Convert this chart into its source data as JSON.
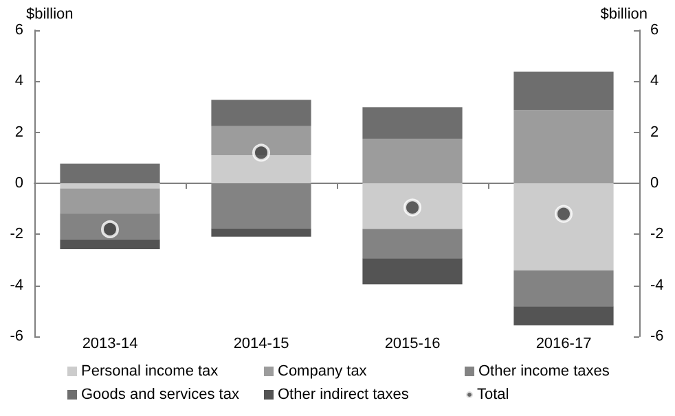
{
  "chart_data": {
    "type": "bar",
    "stacked": true,
    "ylabel": "$billion",
    "y2label": "$billion",
    "categories": [
      "2013-14",
      "2014-15",
      "2015-16",
      "2016-17"
    ],
    "ylim": [
      -6,
      6
    ],
    "yticks": [
      -6,
      -4,
      -2,
      0,
      2,
      4,
      6
    ],
    "y2lim": [
      -6,
      6
    ],
    "y2ticks": [
      -6,
      -4,
      -2,
      0,
      2,
      4,
      6
    ],
    "legend": "bottom",
    "series": [
      {
        "name": "Personal income tax",
        "color": "#cccccc",
        "values": [
          -0.2,
          1.1,
          -1.79,
          -3.42
        ]
      },
      {
        "name": "Company tax",
        "color": "#9c9c9c",
        "values": [
          -0.97,
          1.14,
          1.74,
          2.87
        ]
      },
      {
        "name": "Other income taxes",
        "color": "#838383",
        "values": [
          -1.03,
          -1.77,
          -1.15,
          -1.4
        ]
      },
      {
        "name": "Goods and services tax",
        "color": "#6e6e6e",
        "values": [
          0.77,
          1.03,
          1.24,
          1.5
        ]
      },
      {
        "name": "Other indirect taxes",
        "color": "#545454",
        "values": [
          -0.38,
          -0.32,
          -1.02,
          -0.75
        ]
      },
      {
        "name": "Total",
        "type": "scatter",
        "marker": "circle",
        "color": "#404040",
        "x": [
          "2013-14",
          "2014-15",
          "2015-16",
          "2016-17"
        ],
        "values": [
          -1.8,
          1.2,
          -0.95,
          -1.2
        ]
      }
    ]
  }
}
